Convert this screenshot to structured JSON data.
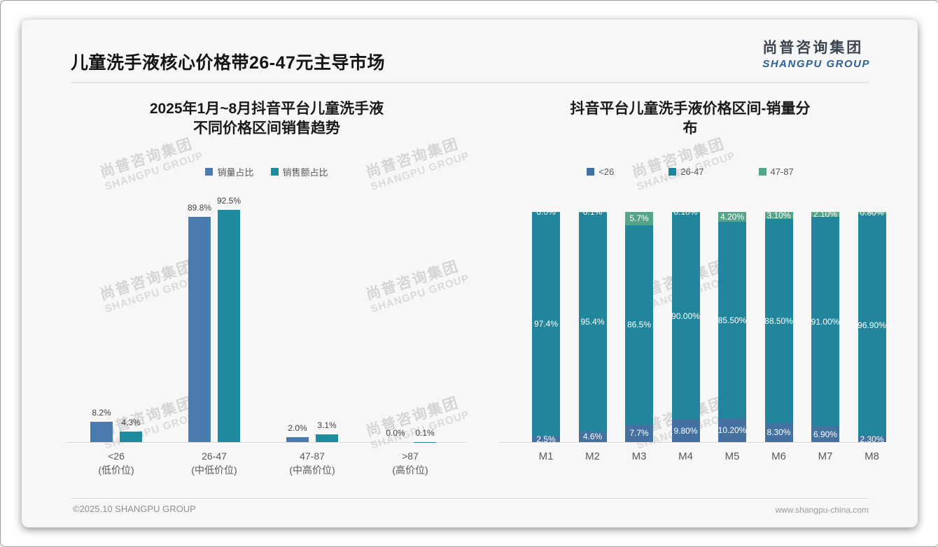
{
  "slide": {
    "title": "儿童洗手液核心价格带26-47元主导市场"
  },
  "logo": {
    "cn": "尚普咨询集团",
    "en": "SHANGPU GROUP"
  },
  "watermark": {
    "cn": "尚普咨询集团",
    "en": "SHANGPU GROUP"
  },
  "footer": {
    "copyright": "©2025.10 SHANGPU GROUP",
    "website": "www.shangpu-china.com"
  },
  "colors": {
    "sales_share_blue": "#4a7ab0",
    "revenue_share_teal": "#1f8b9e",
    "stack_lt26_blue": "#44719f",
    "stack_26_47_teal": "#21869b",
    "stack_47_87_green": "#57a589",
    "axis_gray": "#d9d9d9",
    "text_gray": "#595959"
  },
  "chart_data": [
    {
      "type": "bar",
      "title_lines": [
        "2025年1月~8月抖音平台儿童洗手液",
        "不同价格区间销售趋势"
      ],
      "categories": [
        [
          "<26",
          "(低价位)"
        ],
        [
          "26-47",
          "(中低价位)"
        ],
        [
          "47-87",
          "(中高价位)"
        ],
        [
          ">87",
          "(高价位)"
        ]
      ],
      "series": [
        {
          "name": "销量占比",
          "color": "#4a7ab0",
          "values": [
            8.2,
            89.8,
            2.0,
            0.0
          ],
          "labels": [
            "8.2%",
            "89.8%",
            "2.0%",
            "0.0%"
          ]
        },
        {
          "name": "销售额占比",
          "color": "#1f8b9e",
          "values": [
            4.3,
            92.5,
            3.1,
            0.1
          ],
          "labels": [
            "4.3%",
            "92.5%",
            "3.1%",
            "0.1%"
          ]
        }
      ],
      "ylim": [
        0,
        100
      ],
      "grid": false,
      "legend_position": "top"
    },
    {
      "type": "bar-stacked-100",
      "title_lines": [
        "抖音平台儿童洗手液价格区间-销量分",
        "布"
      ],
      "categories": [
        "M1",
        "M2",
        "M3",
        "M4",
        "M5",
        "M6",
        "M7",
        "M8"
      ],
      "series": [
        {
          "name": "<26",
          "color": "#44719f",
          "values": [
            2.5,
            4.6,
            7.7,
            9.8,
            10.2,
            8.3,
            6.9,
            2.3
          ],
          "labels": [
            "2.5%",
            "4.6%",
            "7.7%",
            "9.80%",
            "10.20%",
            "8.30%",
            "6.90%",
            "2.30%"
          ]
        },
        {
          "name": "26-47",
          "color": "#21869b",
          "values": [
            97.4,
            95.4,
            86.5,
            90.0,
            85.5,
            88.5,
            91.0,
            96.9
          ],
          "labels": [
            "97.4%",
            "95.4%",
            "86.5%",
            "90.00%",
            "85.50%",
            "88.50%",
            "91.00%",
            "96.90%"
          ]
        },
        {
          "name": "47-87",
          "color": "#57a589",
          "values": [
            0.0,
            0.1,
            5.7,
            0.1,
            4.2,
            3.1,
            2.1,
            0.8
          ],
          "labels": [
            "0.0%",
            "0.1%",
            "5.7%",
            "0.10%",
            "4.20%",
            "3.10%",
            "2.10%",
            "0.80%"
          ]
        }
      ],
      "ylim": [
        0,
        100
      ],
      "grid": false,
      "legend_position": "top"
    }
  ]
}
